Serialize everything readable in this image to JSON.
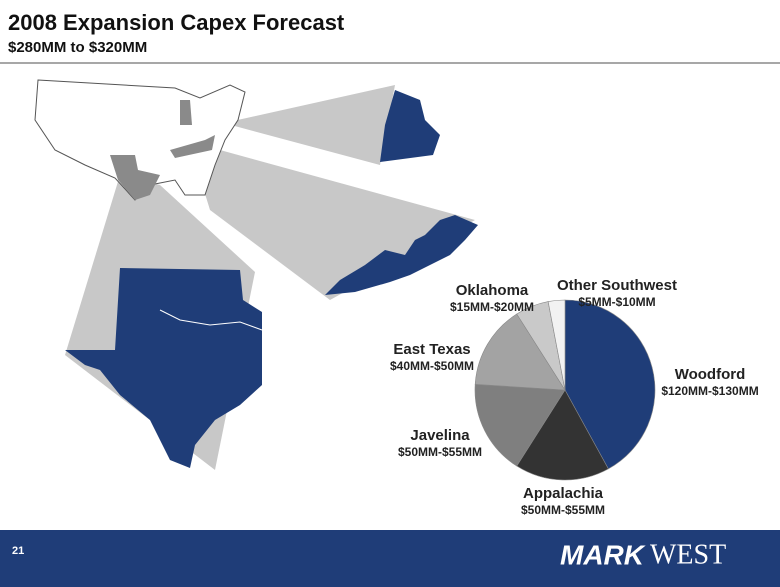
{
  "title": "2008 Expansion Capex Forecast",
  "subtitle": "$280MM to $320MM",
  "page_number": "21",
  "logo": [
    "MARK",
    "WEST"
  ],
  "chart_data": {
    "type": "pie",
    "categories": [
      "Woodford",
      "Appalachia",
      "Javelina",
      "East Texas",
      "Oklahoma",
      "Other Southwest"
    ],
    "ranges": [
      "$120MM-$130MM",
      "$50MM-$55MM",
      "$50MM-$55MM",
      "$40MM-$50MM",
      "$15MM-$20MM",
      "$5MM-$10MM"
    ],
    "values": [
      42,
      17,
      17,
      15,
      6,
      3
    ],
    "colors": [
      "#1f3d78",
      "#333333",
      "#7f7f7f",
      "#a3a3a3",
      "#c9c9c9",
      "#f2f2f2"
    ]
  }
}
